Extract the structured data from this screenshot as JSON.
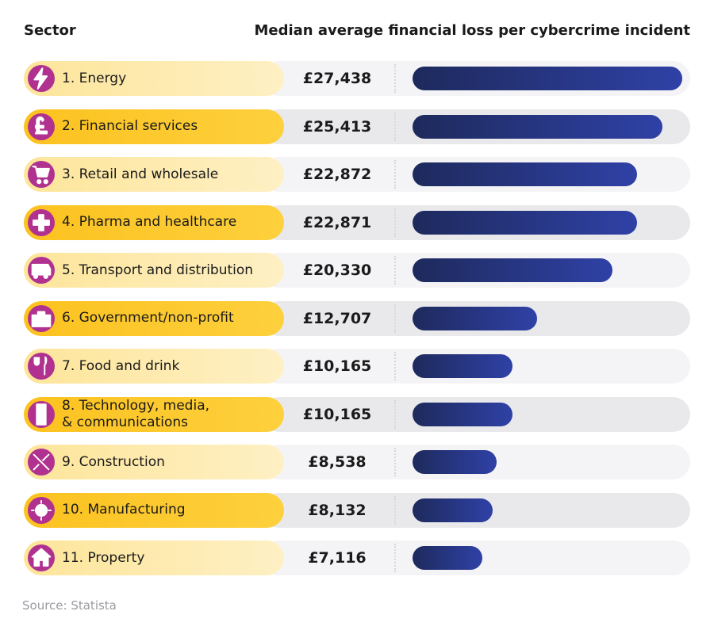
{
  "chart_data": {
    "type": "bar",
    "orientation": "horizontal",
    "category_header": "Sector",
    "value_header": "Median average financial loss per cybercrime incident",
    "categories": [
      "1. Energy",
      "2. Financial services",
      "3. Retail and wholesale",
      "4. Pharma and healthcare",
      "5. Transport and distribution",
      "6. Government/non-profit",
      "7. Food and drink",
      "8. Technology, media, & communications",
      "9. Construction",
      "10. Manufacturing",
      "11. Property"
    ],
    "values": [
      27438,
      25413,
      22872,
      22871,
      20330,
      12707,
      10165,
      10165,
      8538,
      8132,
      7116
    ],
    "value_labels": [
      "£27,438",
      "£25,413",
      "£22,872",
      "£22,871",
      "£20,330",
      "£12,707",
      "£10,165",
      "£10,165",
      "£8,538",
      "£8,132",
      "£7,116"
    ],
    "color": "#25337a",
    "source": "Source: Statista"
  }
}
